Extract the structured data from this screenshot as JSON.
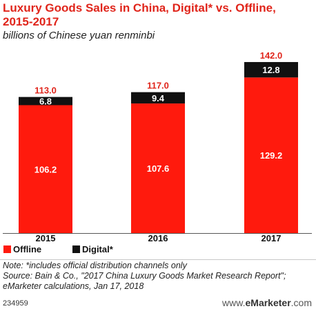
{
  "title": "Luxury Goods Sales in China, Digital* vs. Offline, 2015-2017",
  "subtitle": "billions of Chinese yuan renminbi",
  "colors": {
    "offline": "#ff1a0d",
    "digital": "#111111",
    "accent": "#e0251b"
  },
  "chart_data": {
    "type": "bar",
    "stacked": true,
    "categories": [
      "2015",
      "2016",
      "2017"
    ],
    "series": [
      {
        "name": "Offline",
        "values": [
          106.2,
          107.6,
          129.2
        ]
      },
      {
        "name": "Digital*",
        "values": [
          6.8,
          9.4,
          12.8
        ]
      }
    ],
    "value_labels": {
      "offline": [
        "106.2",
        "107.6",
        "129.2"
      ],
      "digital": [
        "6.8",
        "9.4",
        "12.8"
      ],
      "totals": [
        "113.0",
        "117.0",
        "142.0"
      ]
    },
    "totals": [
      113.0,
      117.0,
      142.0
    ],
    "ylim": [
      0,
      150
    ],
    "legend_position": "bottom-left"
  },
  "legend": {
    "offline": "Offline",
    "digital": "Digital*"
  },
  "note": {
    "line1": "Note: *includes official distribution channels only",
    "line2": "Source: Bain & Co., \"2017 China Luxury Goods Market Research Report\";",
    "line3": "eMarketer calculations, Jan 17, 2018"
  },
  "chart_id": "234959",
  "brand": {
    "prefix": "www.",
    "name": "eMarketer",
    "suffix": ".com"
  }
}
